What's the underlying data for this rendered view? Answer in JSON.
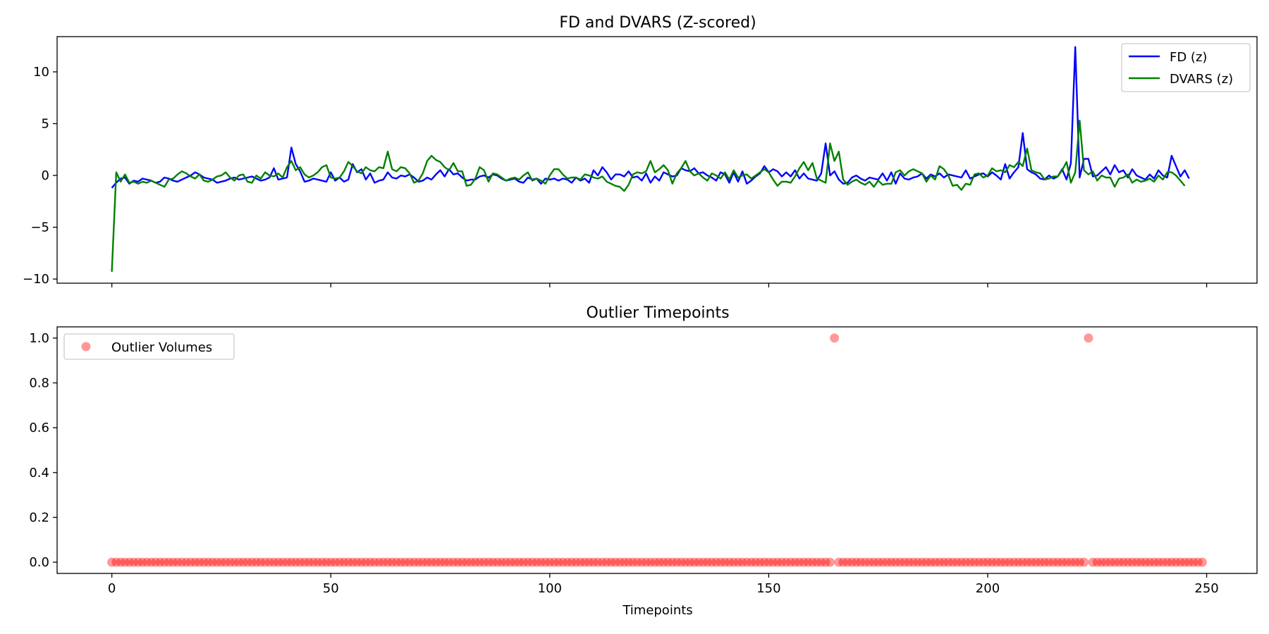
{
  "chart_data": [
    {
      "type": "line",
      "title": "FD and DVARS (Z-scored)",
      "xlabel": "",
      "ylabel": "",
      "xlim": [
        -12.5,
        261.5
      ],
      "ylim": [
        -10.4,
        13.4
      ],
      "xticks": [
        0,
        50,
        100,
        150,
        200,
        250
      ],
      "yticks": [
        -10,
        -5,
        0,
        5,
        10
      ],
      "ytick_labels": [
        "−10",
        "−5",
        "0",
        "5",
        "10"
      ],
      "grid": false,
      "legend_position": "top-right",
      "series": [
        {
          "name": "FD (z)",
          "color": "#0000ff",
          "values": [
            -1.2,
            -0.7,
            -0.3,
            -0.2,
            -0.8,
            -0.5,
            -0.6,
            -0.3,
            -0.4,
            -0.5,
            -0.7,
            -0.6,
            -0.2,
            -0.3,
            -0.5,
            -0.6,
            -0.4,
            -0.2,
            0.0,
            0.3,
            0.1,
            -0.2,
            -0.3,
            -0.4,
            -0.7,
            -0.6,
            -0.5,
            -0.3,
            -0.2,
            -0.4,
            -0.3,
            -0.2,
            -0.1,
            -0.3,
            -0.5,
            -0.4,
            -0.2,
            0.7,
            -0.4,
            -0.3,
            -0.2,
            2.7,
            1.1,
            0.4,
            -0.6,
            -0.5,
            -0.3,
            -0.4,
            -0.5,
            -0.6,
            0.3,
            -0.5,
            -0.2,
            -0.6,
            -0.4,
            1.1,
            0.3,
            0.6,
            -0.4,
            0.2,
            -0.7,
            -0.5,
            -0.4,
            0.3,
            -0.2,
            -0.3,
            0.0,
            -0.1,
            0.1,
            -0.2,
            -0.6,
            -0.5,
            -0.2,
            -0.4,
            0.1,
            0.5,
            -0.1,
            0.6,
            0.1,
            0.2,
            -0.2,
            -0.5,
            -0.4,
            -0.4,
            -0.1,
            0.0,
            -0.2,
            0.1,
            0.0,
            -0.3,
            -0.5,
            -0.4,
            -0.3,
            -0.6,
            -0.7,
            -0.2,
            -0.4,
            -0.3,
            -0.8,
            -0.3,
            -0.4,
            -0.3,
            -0.5,
            -0.3,
            -0.4,
            -0.7,
            -0.2,
            -0.5,
            -0.3,
            -0.7,
            0.5,
            0.0,
            0.8,
            0.3,
            -0.4,
            0.1,
            0.1,
            -0.1,
            0.4,
            -0.2,
            -0.1,
            -0.5,
            0.2,
            -0.7,
            -0.1,
            -0.5,
            0.3,
            0.1,
            -0.1,
            0.0,
            0.7,
            0.5,
            0.4,
            0.7,
            0.2,
            0.3,
            0.0,
            -0.2,
            -0.5,
            0.3,
            0.1,
            -0.7,
            0.3,
            -0.6,
            0.4,
            -0.8,
            -0.5,
            -0.1,
            0.2,
            0.9,
            0.3,
            0.6,
            0.4,
            -0.1,
            0.3,
            -0.1,
            0.5,
            -0.3,
            0.2,
            -0.3,
            -0.4,
            -0.5,
            0.2,
            3.1,
            0.0,
            0.4,
            -0.4,
            -0.8,
            -0.7,
            -0.2,
            0.0,
            -0.3,
            -0.5,
            -0.2,
            -0.3,
            -0.4,
            0.2,
            -0.5,
            0.3,
            -0.8,
            0.2,
            -0.3,
            -0.4,
            -0.2,
            -0.1,
            0.2,
            -0.3,
            0.1,
            -0.1,
            0.2,
            -0.2,
            0.1,
            0.0,
            -0.1,
            -0.2,
            0.5,
            -0.3,
            -0.1,
            0.1,
            0.2,
            -0.1,
            0.3,
            0.0,
            -0.4,
            1.1,
            -0.3,
            0.3,
            0.8,
            4.1,
            0.6,
            0.3,
            0.1,
            -0.3,
            -0.4,
            0.0,
            -0.3,
            -0.1,
            0.6,
            -0.4,
            1.2,
            12.4,
            -0.2,
            1.6,
            1.6,
            -0.1,
            0.0,
            0.4,
            0.8,
            0.1,
            1.0,
            0.3,
            0.5,
            -0.2,
            0.6,
            0.0,
            -0.2,
            -0.4,
            0.1,
            -0.3,
            0.5,
            0.0,
            -0.2,
            1.9,
            0.9,
            -0.1,
            0.5,
            -0.3
          ]
        },
        {
          "name": "DVARS (z)",
          "color": "#008000",
          "values": [
            -9.3,
            0.3,
            -0.6,
            0.1,
            -0.7,
            -0.6,
            -0.8,
            -0.6,
            -0.7,
            -0.5,
            -0.7,
            -0.9,
            -1.1,
            -0.4,
            -0.3,
            0.1,
            0.4,
            0.2,
            -0.1,
            -0.3,
            0.1,
            -0.5,
            -0.6,
            -0.4,
            -0.1,
            0.0,
            0.3,
            -0.2,
            -0.5,
            0.0,
            0.1,
            -0.6,
            -0.7,
            0.0,
            -0.3,
            0.3,
            0.0,
            -0.1,
            0.2,
            -0.2,
            0.8,
            1.4,
            0.5,
            0.8,
            0.1,
            -0.2,
            0.0,
            0.3,
            0.8,
            1.0,
            -0.2,
            -0.3,
            -0.2,
            0.4,
            1.3,
            0.9,
            0.4,
            0.2,
            0.8,
            0.5,
            0.4,
            0.8,
            0.7,
            2.3,
            0.6,
            0.4,
            0.8,
            0.7,
            0.2,
            -0.7,
            -0.5,
            0.2,
            1.4,
            1.9,
            1.5,
            1.3,
            0.8,
            0.5,
            1.2,
            0.4,
            0.4,
            -1.0,
            -0.9,
            -0.3,
            0.8,
            0.5,
            -0.6,
            0.2,
            0.1,
            -0.2,
            -0.5,
            -0.3,
            -0.2,
            -0.4,
            0.0,
            0.3,
            -0.5,
            -0.3,
            -0.5,
            -0.8,
            0.0,
            0.6,
            0.6,
            0.1,
            -0.3,
            -0.2,
            -0.2,
            -0.4,
            0.1,
            0.0,
            -0.2,
            -0.3,
            -0.1,
            -0.6,
            -0.8,
            -1.0,
            -1.1,
            -1.5,
            -0.9,
            0.1,
            0.3,
            0.2,
            0.4,
            1.4,
            0.3,
            0.6,
            1.0,
            0.5,
            -0.8,
            0.2,
            0.7,
            1.4,
            0.4,
            0.0,
            0.2,
            -0.2,
            -0.5,
            0.2,
            0.0,
            -0.3,
            0.3,
            -0.4,
            0.5,
            -0.2,
            0.0,
            0.1,
            -0.3,
            0.0,
            0.3,
            0.6,
            0.3,
            -0.4,
            -1.0,
            -0.6,
            -0.6,
            -0.7,
            -0.1,
            0.7,
            1.3,
            0.5,
            1.2,
            -0.3,
            -0.5,
            -0.7,
            3.1,
            1.4,
            2.3,
            -0.4,
            -0.9,
            -0.6,
            -0.4,
            -0.7,
            -0.9,
            -0.6,
            -1.1,
            -0.5,
            -0.9,
            -0.8,
            -0.8,
            0.3,
            0.5,
            0.0,
            0.4,
            0.6,
            0.4,
            0.2,
            -0.6,
            0.0,
            -0.4,
            0.9,
            0.6,
            0.0,
            -1.0,
            -0.9,
            -1.4,
            -0.8,
            -0.9,
            0.1,
            0.2,
            -0.2,
            0.0,
            0.7,
            0.4,
            0.5,
            0.3,
            1.0,
            0.8,
            1.3,
            0.9,
            2.6,
            0.5,
            0.3,
            0.2,
            -0.4,
            -0.3,
            -0.1,
            -0.1,
            0.5,
            1.3,
            -0.7,
            0.3,
            5.3,
            0.5,
            0.1,
            0.4,
            -0.5,
            0.0,
            -0.2,
            -0.2,
            -1.1,
            -0.3,
            -0.2,
            0.1,
            -0.7,
            -0.4,
            -0.6,
            -0.5,
            -0.3,
            -0.6,
            0.0,
            -0.4,
            0.3,
            0.3,
            0.0,
            -0.5,
            -1.0
          ]
        }
      ]
    },
    {
      "type": "scatter",
      "title": "Outlier Timepoints",
      "xlabel": "Timepoints",
      "ylabel": "",
      "xlim": [
        -12.5,
        261.5
      ],
      "ylim": [
        -0.05,
        1.05
      ],
      "xticks": [
        0,
        50,
        100,
        150,
        200,
        250
      ],
      "yticks": [
        0.0,
        0.2,
        0.4,
        0.6,
        0.8,
        1.0
      ],
      "ytick_labels": [
        "0.0",
        "0.2",
        "0.4",
        "0.6",
        "0.8",
        "1.0"
      ],
      "grid": false,
      "legend_position": "top-left",
      "series": [
        {
          "name": "Outlier Volumes",
          "color": "#ff0000",
          "x_range": [
            0,
            249
          ],
          "outlier_x": [
            165,
            223
          ],
          "default_value": 0,
          "outlier_value": 1
        }
      ]
    }
  ]
}
